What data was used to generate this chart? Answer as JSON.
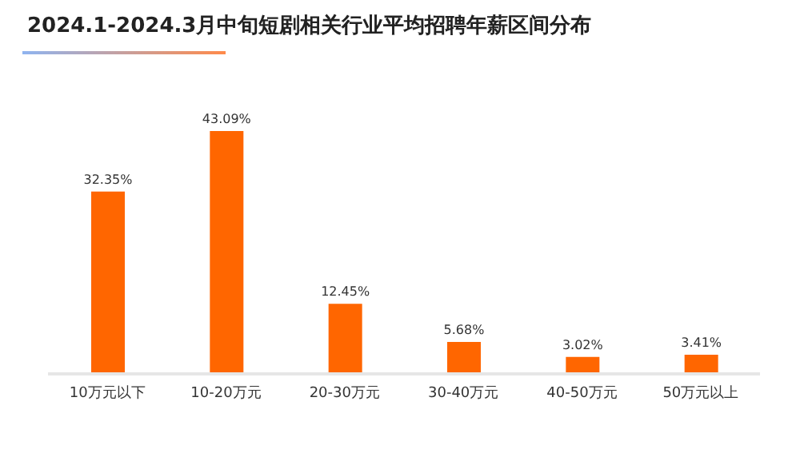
{
  "chart_data": {
    "type": "bar",
    "title": "2024.1-2024.3月中旬短剧相关行业平均招聘年薪区间分布",
    "categories": [
      "10万元以下",
      "10-20万元",
      "20-30万元",
      "30-40万元",
      "40-50万元",
      "50万元以上"
    ],
    "values": [
      32.35,
      43.09,
      12.45,
      5.68,
      3.02,
      3.41
    ],
    "value_labels": [
      "32.35%",
      "43.09%",
      "12.45%",
      "5.68%",
      "3.02%",
      "3.41%"
    ],
    "color": "#ff6600",
    "grid": false,
    "legend": false
  }
}
